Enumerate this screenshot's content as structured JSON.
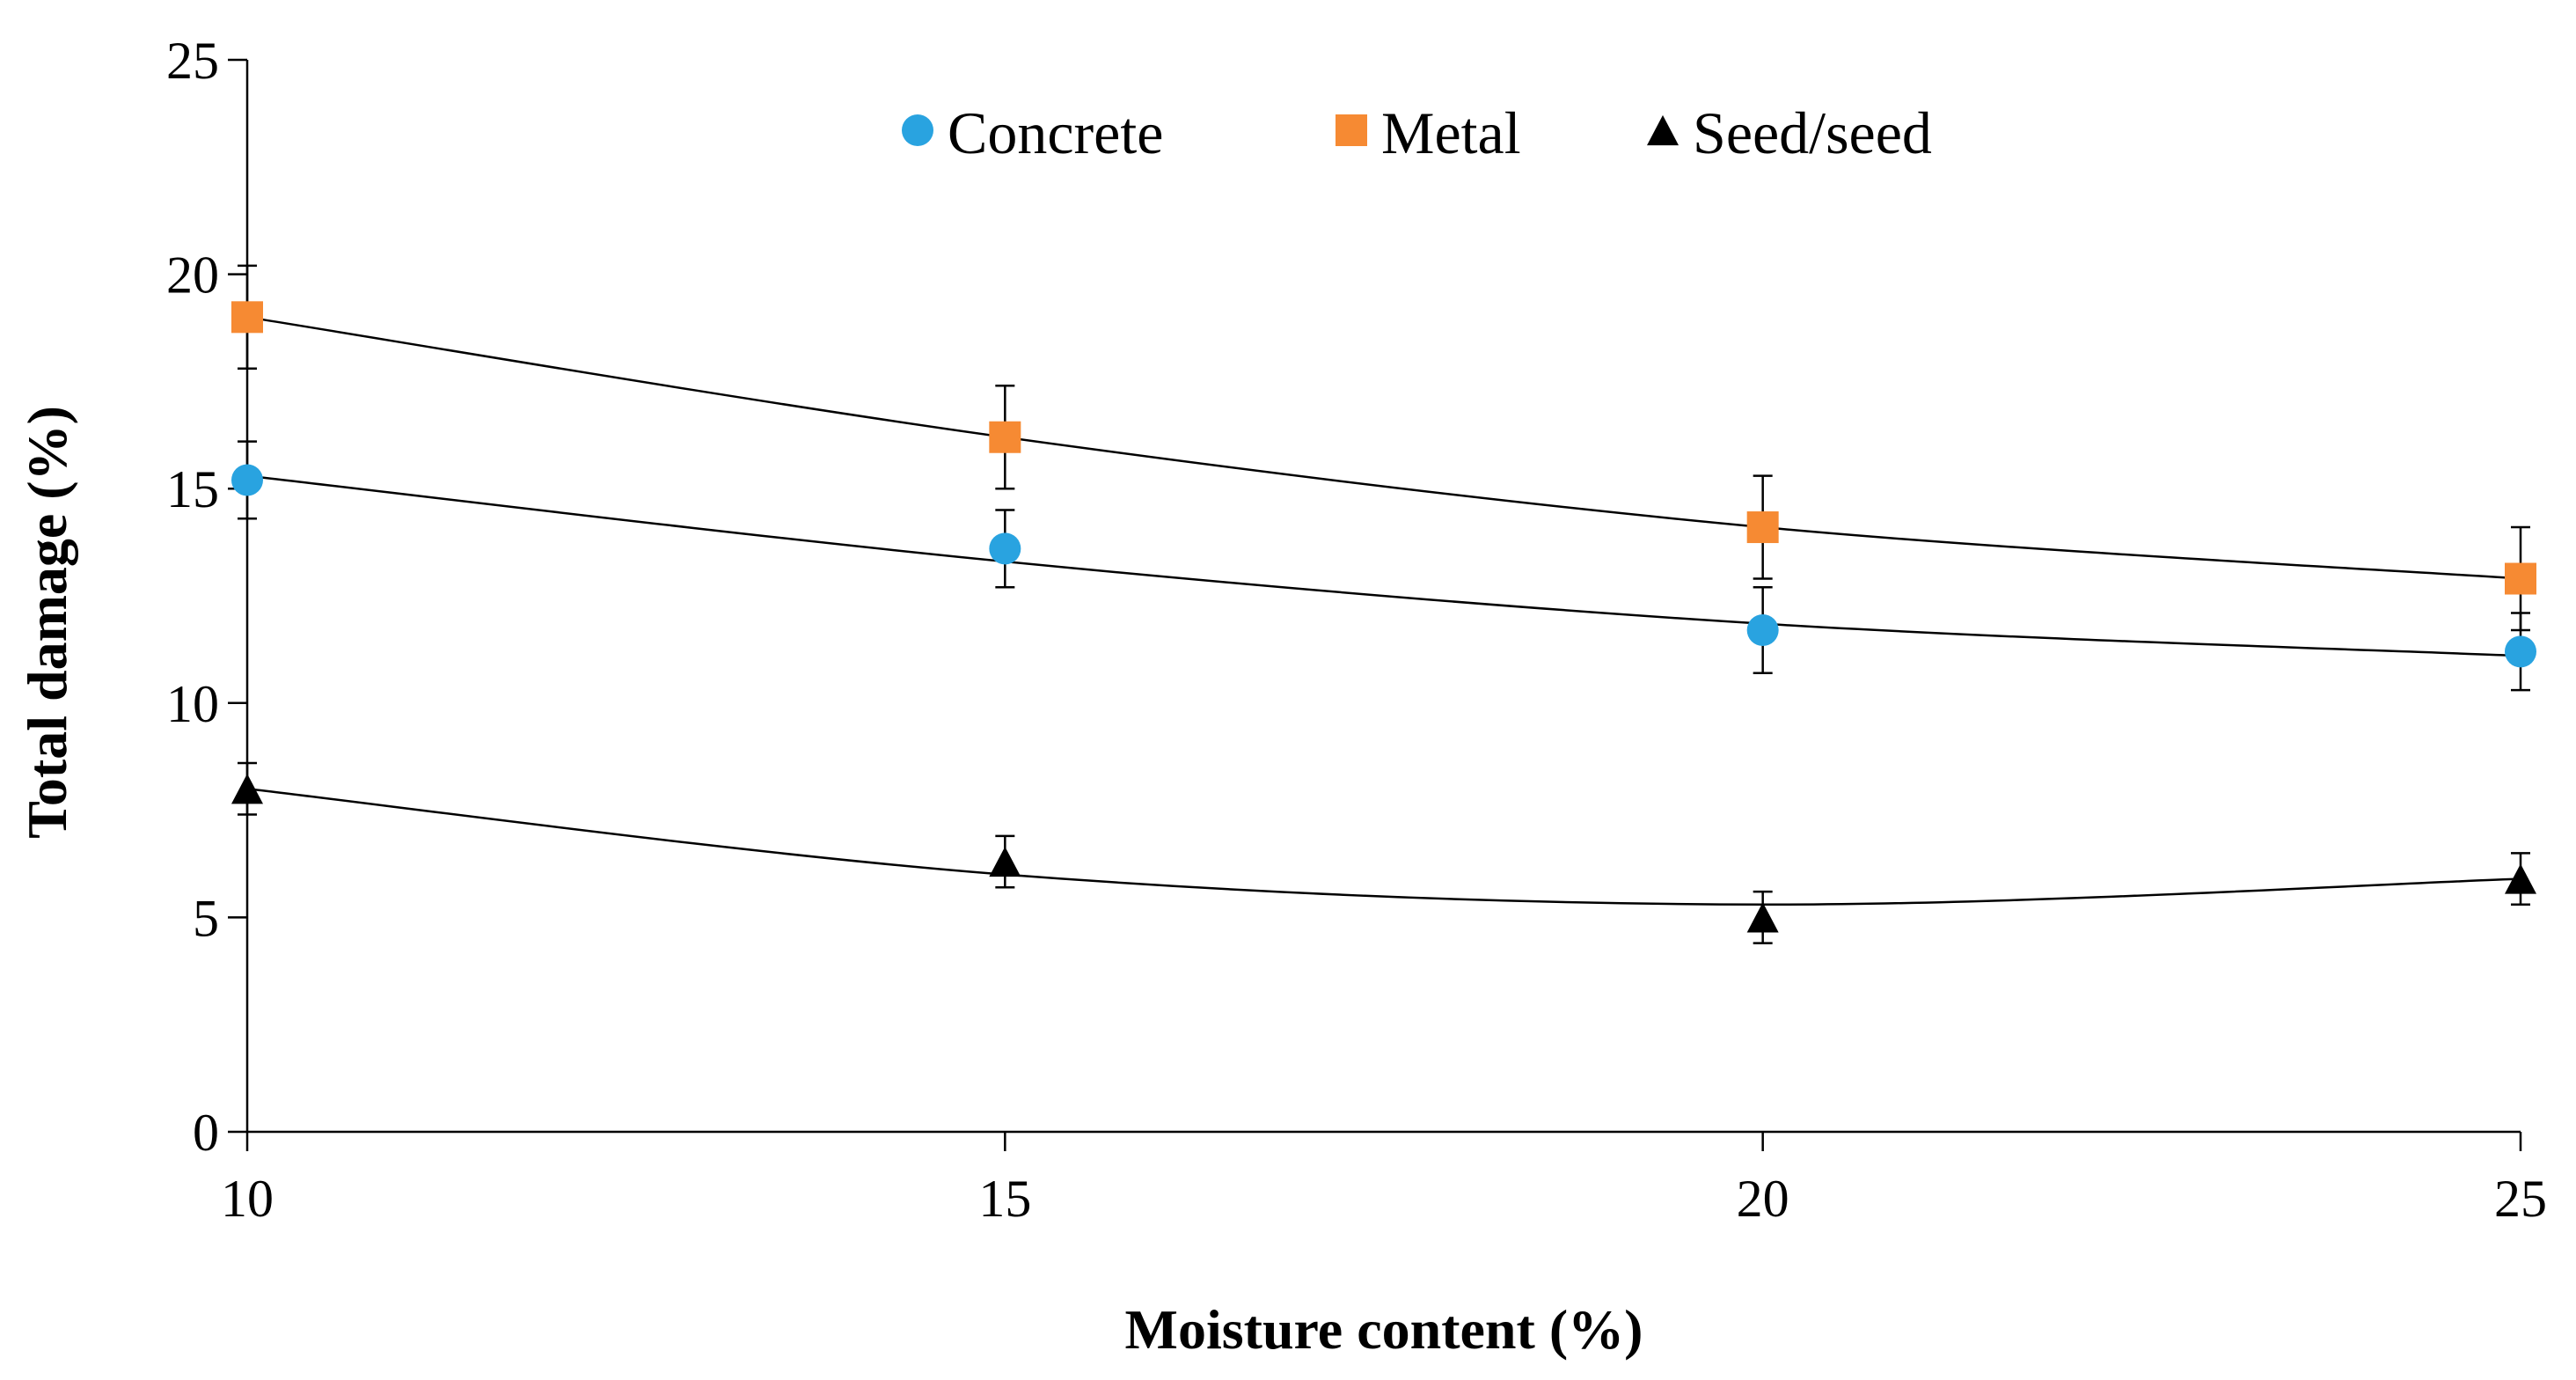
{
  "chart_data": {
    "type": "scatter",
    "title": "",
    "xlabel": "Moisture content (%)",
    "ylabel": "Total damage (%)",
    "xlim": [
      10,
      25
    ],
    "ylim": [
      0,
      25
    ],
    "x_ticks": [
      10,
      15,
      20,
      25
    ],
    "y_ticks": [
      0,
      5,
      10,
      15,
      20,
      25
    ],
    "x_tick_labels": [
      "10",
      "15",
      "20",
      "25"
    ],
    "y_tick_labels": [
      "0",
      "5",
      "10",
      "15",
      "20",
      "25"
    ],
    "legend_position": "top-center",
    "series": [
      {
        "name": "Concrete",
        "marker": "circle",
        "color": "#29A3E0",
        "x": [
          10,
          15,
          20,
          25
        ],
        "values": [
          15.2,
          13.6,
          11.7,
          11.2
        ],
        "errors": [
          0.9,
          0.9,
          1.0,
          0.9
        ],
        "trend": [
          15.3,
          13.3,
          11.85,
          11.1
        ]
      },
      {
        "name": "Metal",
        "marker": "square",
        "color": "#F68A33",
        "x": [
          10,
          15,
          20,
          25
        ],
        "values": [
          19.0,
          16.2,
          14.1,
          12.9
        ],
        "errors": [
          1.2,
          1.2,
          1.2,
          1.2
        ],
        "trend": [
          19.0,
          16.2,
          14.1,
          12.9
        ]
      },
      {
        "name": "Seed/seed",
        "marker": "triangle",
        "color": "#000000",
        "x": [
          10,
          15,
          20,
          25
        ],
        "values": [
          8.0,
          6.3,
          5.0,
          5.9
        ],
        "errors": [
          0.6,
          0.6,
          0.6,
          0.6
        ],
        "trend": [
          8.0,
          6.0,
          5.3,
          5.9
        ]
      }
    ]
  }
}
